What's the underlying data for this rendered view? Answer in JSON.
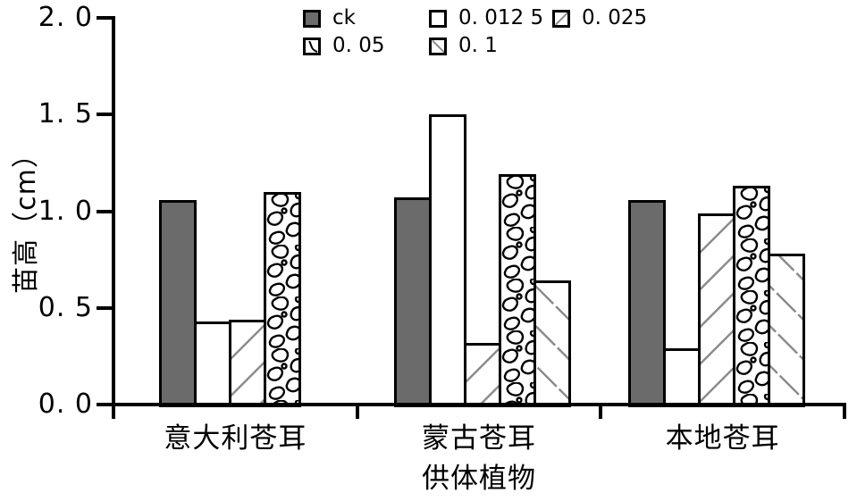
{
  "chart_data": {
    "type": "bar",
    "title": "",
    "xlabel": "供体植物",
    "ylabel": "苗高（cm）",
    "ylim": [
      0.0,
      2.0
    ],
    "yticks": [
      0.0,
      0.5,
      1.0,
      1.5,
      2.0
    ],
    "ytick_labels": [
      "0. 0",
      "0. 5",
      "1. 0",
      "1. 5",
      "2. 0"
    ],
    "categories": [
      "意大利苍耳",
      "蒙古苍耳",
      "本地苍耳"
    ],
    "series": [
      {
        "name": "ck",
        "pattern": "solid-gray",
        "values": [
          1.06,
          1.07,
          1.06
        ]
      },
      {
        "name": "0.0125",
        "pattern": "white",
        "values": [
          0.43,
          1.5,
          0.29
        ]
      },
      {
        "name": "0.025",
        "pattern": "diagonal-slash",
        "values": [
          0.44,
          0.32,
          0.99
        ]
      },
      {
        "name": "0.05",
        "pattern": "marble",
        "values": [
          1.1,
          1.19,
          1.13
        ]
      },
      {
        "name": "0.1",
        "pattern": "diagonal-backslash",
        "values": [
          null,
          0.64,
          0.78
        ]
      }
    ],
    "legend_position": "top",
    "grid": false
  },
  "axes": {
    "ylabel": "苗高（cm）",
    "xlabel": "供体植物"
  },
  "legend": {
    "items": [
      {
        "label": "ck",
        "pattern": "solid-gray"
      },
      {
        "label": "0. 012 5",
        "pattern": "white"
      },
      {
        "label": "0. 025",
        "pattern": "diagonal-slash"
      },
      {
        "label": "0. 05",
        "pattern": "marble"
      },
      {
        "label": "0. 1",
        "pattern": "diagonal-backslash"
      }
    ]
  },
  "colors": {
    "bar_gray_fill": "#6b6b6b",
    "hatch_gray": "#8c8c8c",
    "axis_black": "#000000"
  }
}
